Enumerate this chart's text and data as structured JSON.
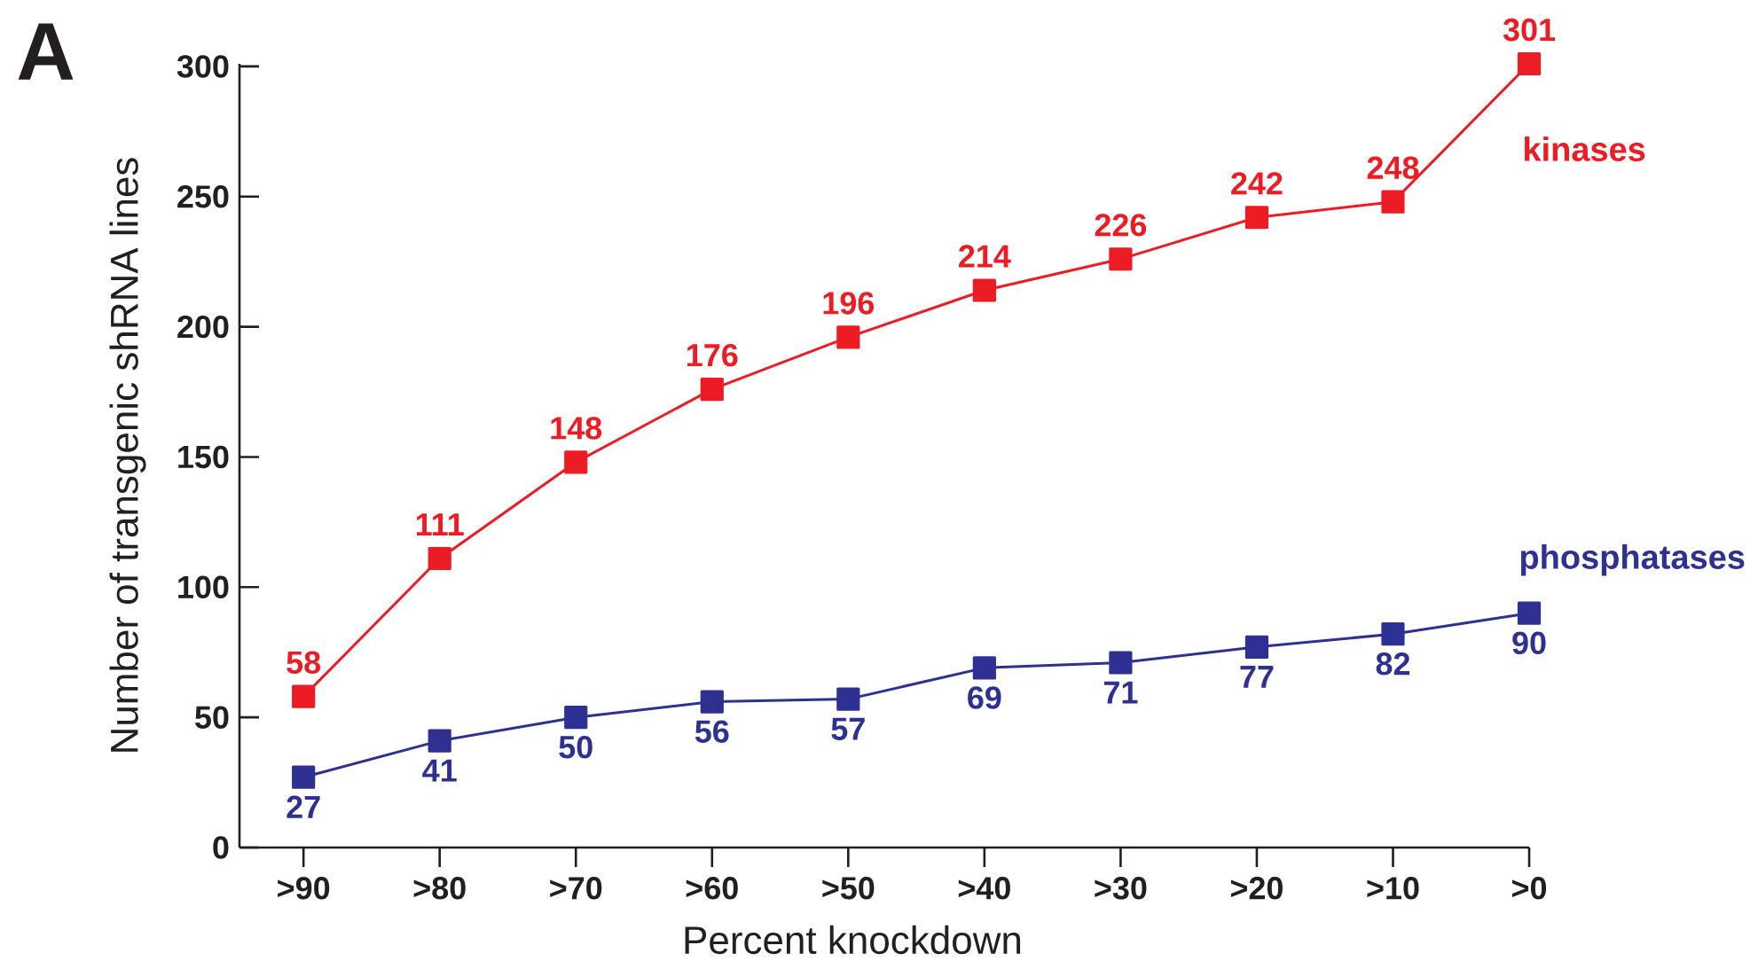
{
  "chart_data": {
    "type": "line",
    "xlabel": "Percent knockdown",
    "ylabel": "Number of transgenic shRNA lines",
    "annotations": [
      "A"
    ],
    "categories": [
      ">90",
      ">80",
      ">70",
      ">60",
      ">50",
      ">40",
      ">30",
      ">20",
      ">10",
      ">0"
    ],
    "series": [
      {
        "name": "kinases",
        "color": "#ed1c24",
        "values": [
          58,
          111,
          148,
          176,
          196,
          214,
          226,
          242,
          248,
          301
        ]
      },
      {
        "name": "phosphatases",
        "color": "#2e3192",
        "values": [
          27,
          41,
          50,
          56,
          57,
          69,
          71,
          77,
          82,
          90
        ]
      }
    ],
    "ylim": [
      0,
      301
    ],
    "yticks": [
      0,
      50,
      100,
      150,
      200,
      250,
      300
    ],
    "data_labels": true,
    "marker": "square",
    "line_style": "solid"
  }
}
